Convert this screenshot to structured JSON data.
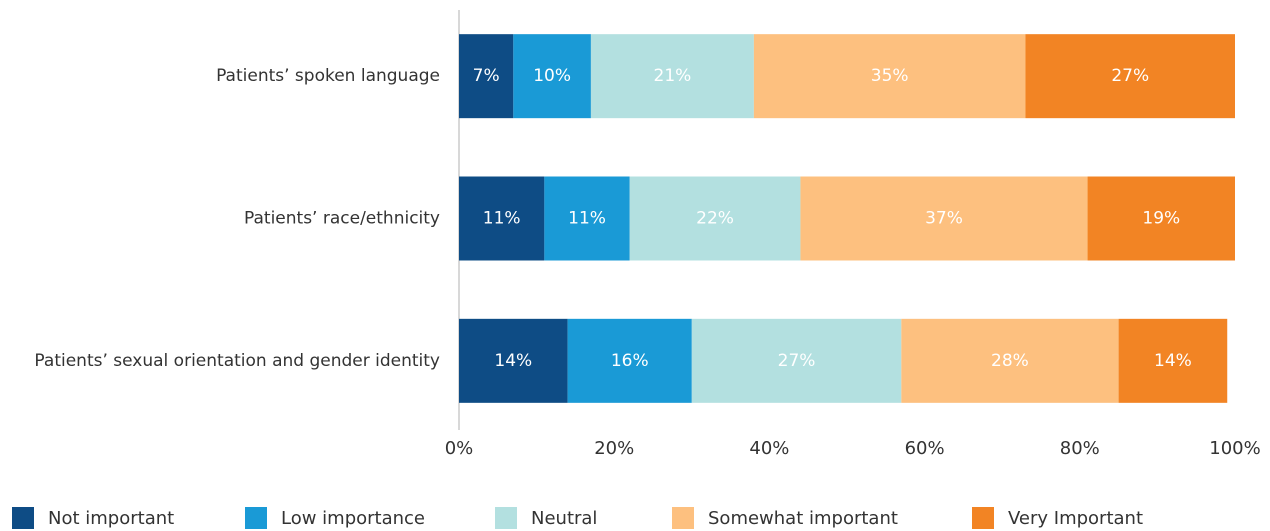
{
  "chart_data": {
    "type": "stacked_bar_horizontal",
    "categories": [
      "Patients’ spoken language",
      "Patients’ race/ethnicity",
      "Patients’ sexual orientation and gender identity"
    ],
    "series": [
      {
        "name": "Not important",
        "color": "#0e4c85",
        "values": [
          7,
          11,
          14
        ],
        "value_labels": [
          "7%",
          "11%",
          "14%"
        ]
      },
      {
        "name": "Low importance",
        "color": "#1a9ad6",
        "values": [
          10,
          11,
          16
        ],
        "value_labels": [
          "10%",
          "11%",
          "16%"
        ]
      },
      {
        "name": "Neutral",
        "color": "#b3e0e0",
        "values": [
          21,
          22,
          27
        ],
        "value_labels": [
          "21%",
          "22%",
          "27%"
        ]
      },
      {
        "name": "Somewhat important",
        "color": "#fdc07f",
        "values": [
          35,
          37,
          28
        ],
        "value_labels": [
          "35%",
          "37%",
          "28%"
        ]
      },
      {
        "name": "Very Important",
        "color": "#f28424",
        "values": [
          27,
          19,
          14
        ],
        "value_labels": [
          "27%",
          "19%",
          "14%"
        ]
      }
    ],
    "xlim": [
      0,
      100
    ],
    "xticks": [
      {
        "value": 0,
        "label": "0%"
      },
      {
        "value": 20,
        "label": "20%"
      },
      {
        "value": 40,
        "label": "40%"
      },
      {
        "value": 60,
        "label": "60%"
      },
      {
        "value": 80,
        "label": "80%"
      },
      {
        "value": 100,
        "label": "100%"
      }
    ],
    "legend": "bottom"
  }
}
